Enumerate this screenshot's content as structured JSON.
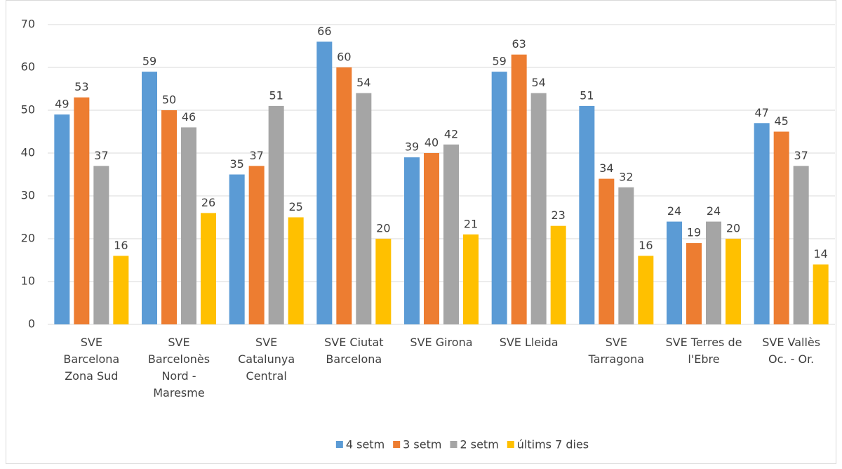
{
  "chart_data": {
    "type": "bar",
    "categories": [
      "SVE Barcelona Zona Sud",
      "SVE Barcelonès Nord - Maresme",
      "SVE Catalunya Central",
      "SVE Ciutat Barcelona",
      "SVE Girona",
      "SVE Lleida",
      "SVE Tarragona",
      "SVE Terres de l'Ebre",
      "SVE Vallès Oc. - Or."
    ],
    "series": [
      {
        "name": "4 setm",
        "color": "#5b9bd5",
        "values": [
          49,
          59,
          35,
          66,
          39,
          59,
          51,
          24,
          47
        ]
      },
      {
        "name": "3 setm",
        "color": "#ed7d31",
        "values": [
          53,
          50,
          37,
          60,
          40,
          63,
          34,
          19,
          45
        ]
      },
      {
        "name": "2 setm",
        "color": "#a5a5a5",
        "values": [
          37,
          46,
          51,
          54,
          42,
          54,
          32,
          24,
          37
        ]
      },
      {
        "name": "últims 7 dies",
        "color": "#ffc000",
        "values": [
          16,
          26,
          25,
          20,
          21,
          23,
          16,
          20,
          14
        ]
      }
    ],
    "ylim": [
      0,
      70
    ],
    "yticks": [
      0,
      10,
      20,
      30,
      40,
      50,
      60,
      70
    ],
    "grid": true,
    "legend": "bottom"
  }
}
